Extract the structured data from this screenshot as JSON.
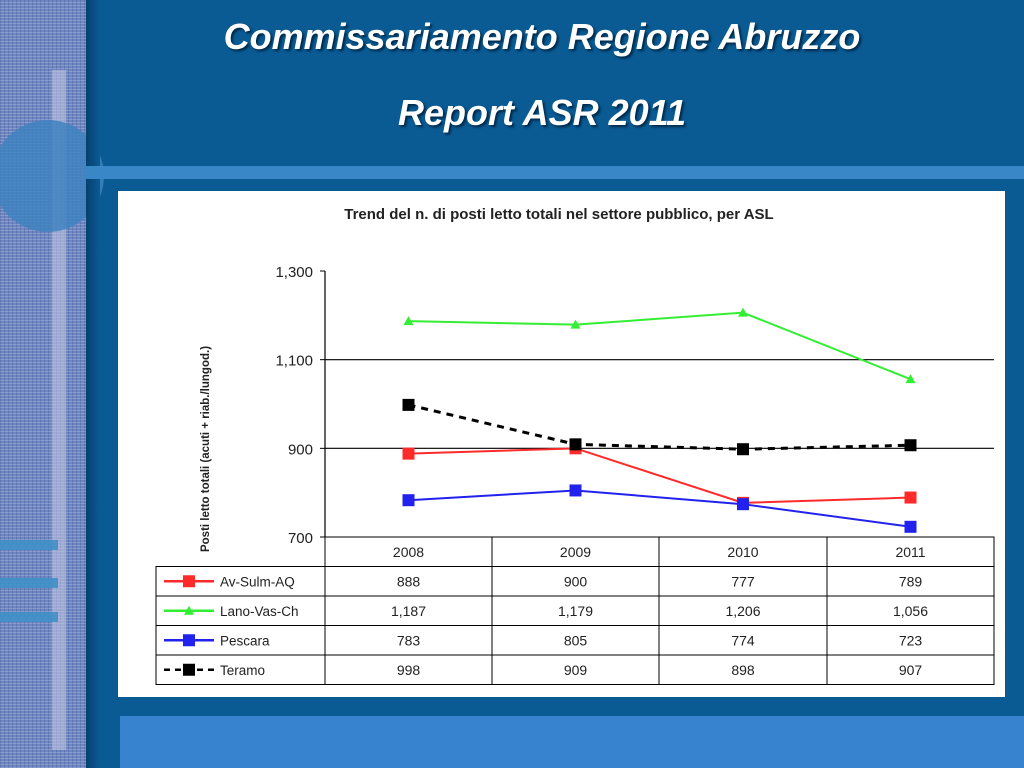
{
  "slide": {
    "title_line1": "Commissariamento Regione Abruzzo",
    "title_line2": "Report ASR 2011"
  },
  "colors": {
    "background": "#0a5a93",
    "band": "#3a87c7",
    "av_sulm_aq": "#ff2a2a",
    "lano_vas_ch": "#33ee33",
    "pescara": "#2222ee",
    "teramo": "#000000"
  },
  "chart_data": {
    "type": "line",
    "title": "Trend del n. di posti letto totali nel settore pubblico, per ASL",
    "ylabel": "Posti letto totali (acuti + riab./lungod.)",
    "xlabel": "",
    "ylim": [
      700,
      1300
    ],
    "yticks": [
      "1,300",
      "1,100",
      "900",
      "700"
    ],
    "ytick_values": [
      1300,
      1100,
      900,
      700
    ],
    "categories": [
      "2008",
      "2009",
      "2010",
      "2011"
    ],
    "grid": "horizontal",
    "legend": "data-table",
    "series": [
      {
        "name": "Av-Sulm-AQ",
        "values": [
          888,
          900,
          777,
          789
        ],
        "labels": [
          "888",
          "900",
          "777",
          "789"
        ],
        "color": "#ff2a2a",
        "marker": "square",
        "dash": "solid"
      },
      {
        "name": "Lano-Vas-Ch",
        "values": [
          1187,
          1179,
          1206,
          1056
        ],
        "labels": [
          "1,187",
          "1,179",
          "1,206",
          "1,056"
        ],
        "color": "#33ee33",
        "marker": "triangle",
        "dash": "solid"
      },
      {
        "name": "Pescara",
        "values": [
          783,
          805,
          774,
          723
        ],
        "labels": [
          "783",
          "805",
          "774",
          "723"
        ],
        "color": "#2222ee",
        "marker": "square",
        "dash": "solid"
      },
      {
        "name": "Teramo",
        "values": [
          998,
          909,
          898,
          907
        ],
        "labels": [
          "998",
          "909",
          "898",
          "907"
        ],
        "color": "#000000",
        "marker": "square",
        "dash": "dashed"
      }
    ]
  }
}
